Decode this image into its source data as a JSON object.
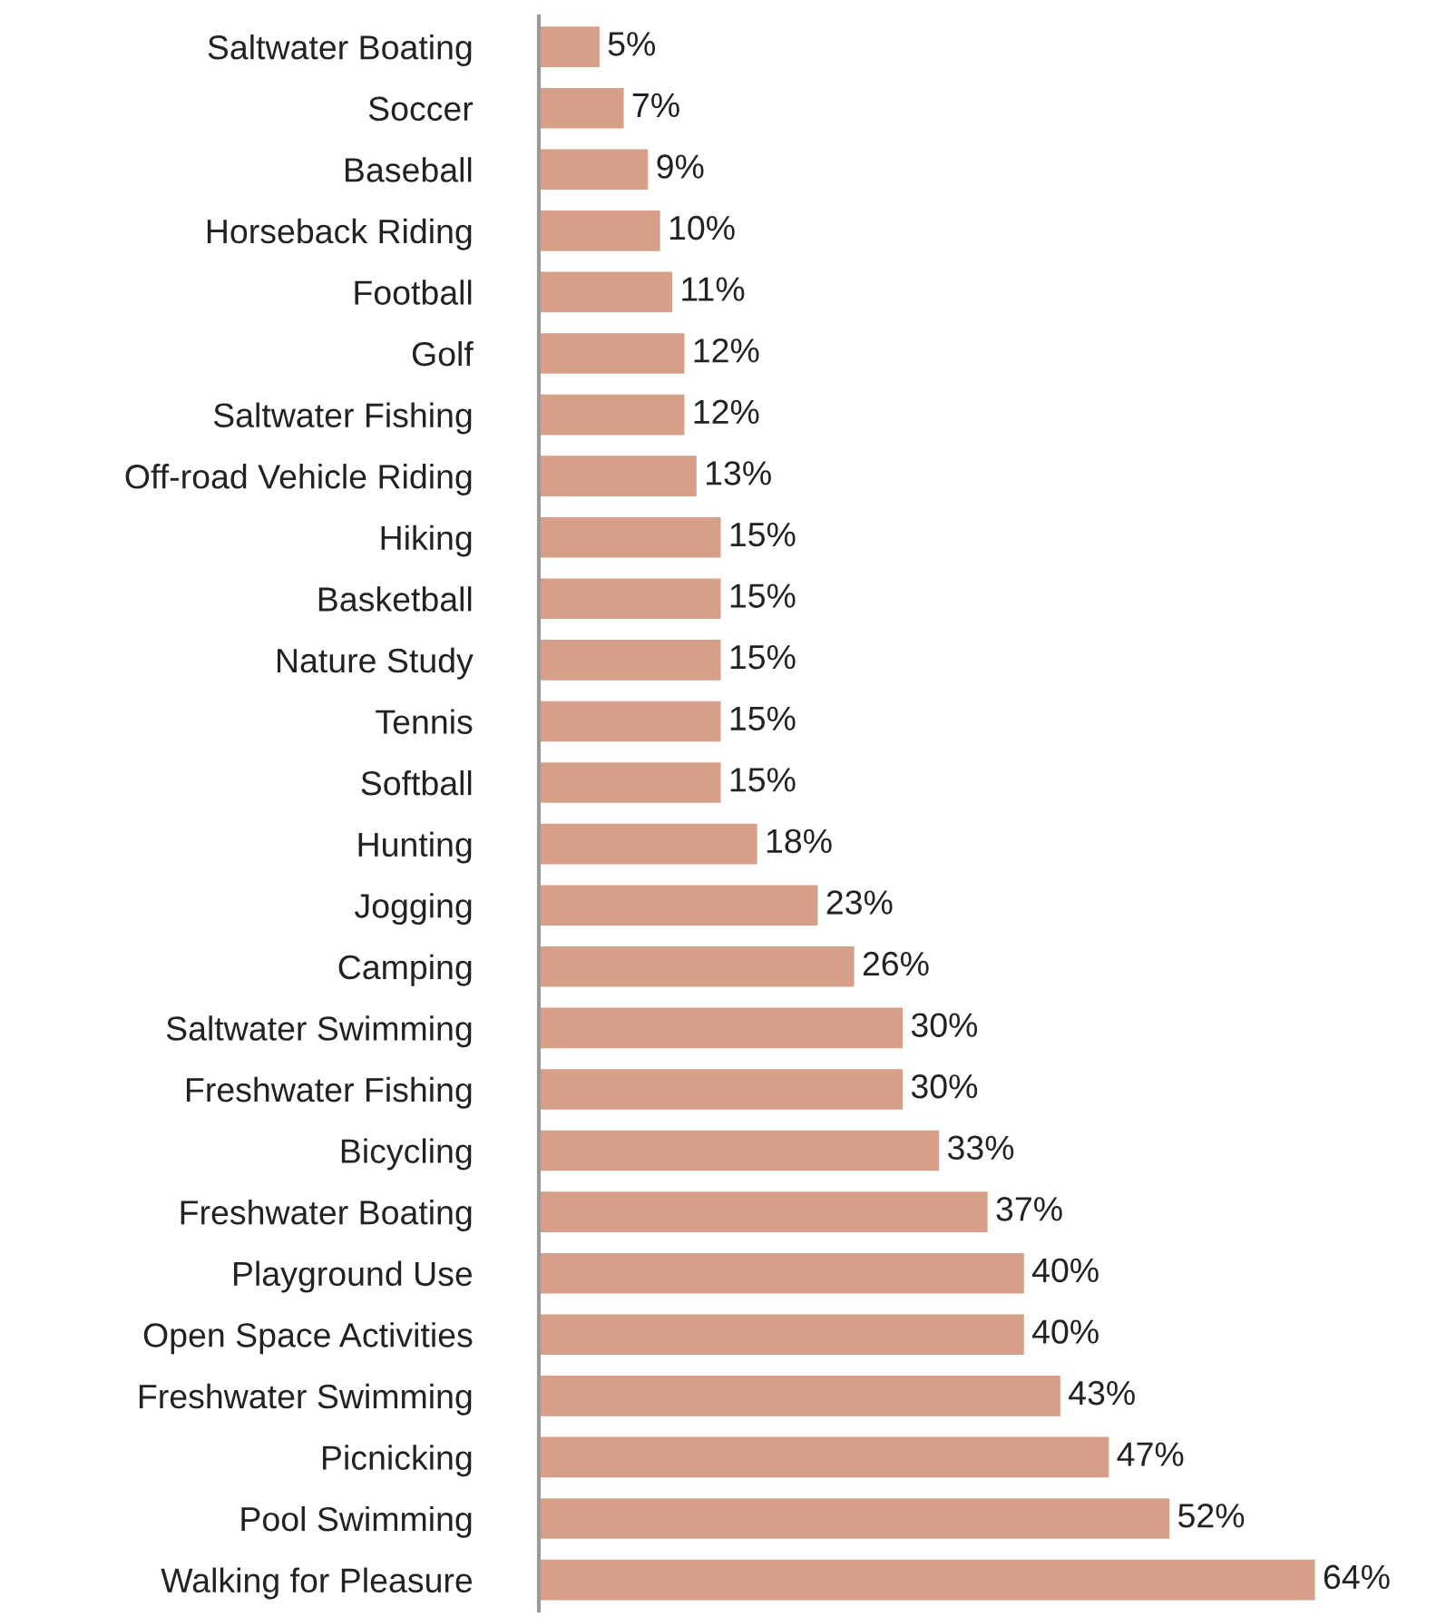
{
  "chart_data": {
    "type": "bar",
    "orientation": "horizontal",
    "categories": [
      "Saltwater Boating",
      "Soccer",
      "Baseball",
      "Horseback Riding",
      "Football",
      "Golf",
      "Saltwater Fishing",
      "Off-road Vehicle Riding",
      "Hiking",
      "Basketball",
      "Nature Study",
      "Tennis",
      "Softball",
      "Hunting",
      "Jogging",
      "Camping",
      "Saltwater Swimming",
      "Freshwater Fishing",
      "Bicycling",
      "Freshwater Boating",
      "Playground Use",
      "Open Space Activities",
      "Freshwater Swimming",
      "Picnicking",
      "Pool Swimming",
      "Walking for Pleasure"
    ],
    "values": [
      5,
      7,
      9,
      10,
      11,
      12,
      12,
      13,
      15,
      15,
      15,
      15,
      15,
      18,
      23,
      26,
      30,
      30,
      33,
      37,
      40,
      40,
      43,
      47,
      52,
      64
    ],
    "value_labels": [
      "5%",
      "7%",
      "9%",
      "10%",
      "11%",
      "12%",
      "12%",
      "13%",
      "15%",
      "15%",
      "15%",
      "15%",
      "15%",
      "18%",
      "23%",
      "26%",
      "30%",
      "30%",
      "33%",
      "37%",
      "40%",
      "40%",
      "43%",
      "47%",
      "52%",
      "64%"
    ],
    "color": "#d6a088",
    "tick_labels": "y",
    "grid": false,
    "legend": false
  }
}
